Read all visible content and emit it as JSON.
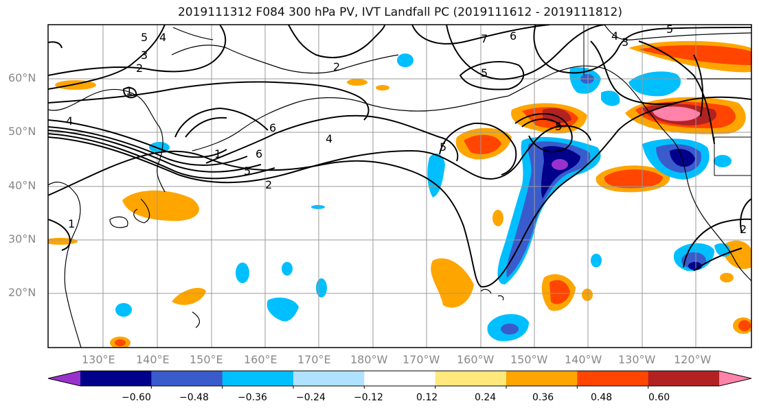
{
  "title": "2019111312 F084 300 hPa PV, IVT Landfall PC (2019111612 - 2019111812)",
  "y_axis_labels": [
    "60°N",
    "50°N",
    "40°N",
    "30°N",
    "20°N"
  ],
  "x_axis_labels": [
    "130°E",
    "140°E",
    "150°E",
    "160°E",
    "170°E",
    "180°W",
    "170°W",
    "160°W",
    "150°W",
    "140°W",
    "130°W",
    "120°W"
  ],
  "colorbar": {
    "ticks": [
      "−0.60",
      "−0.48",
      "−0.36",
      "−0.24",
      "−0.12",
      "0.12",
      "0.24",
      "0.36",
      "0.48",
      "0.60"
    ],
    "colors": [
      "#9932cc",
      "#00008b",
      "#3a5bcc",
      "#00bfff",
      "#b0e2ff",
      "#ffffff",
      "#ffe87c",
      "#ffa500",
      "#ff4500",
      "#b22222",
      "#ff82ab"
    ]
  },
  "pv_contour_labels": [
    "1",
    "2",
    "3",
    "4",
    "5",
    "6",
    "7"
  ]
}
